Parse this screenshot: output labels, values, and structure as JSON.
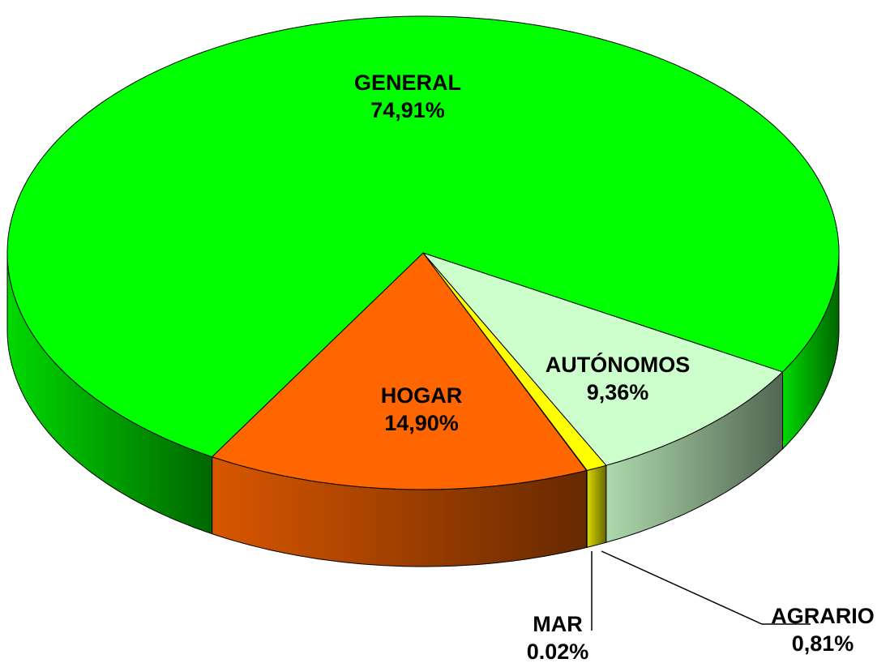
{
  "chart_data": {
    "type": "pie",
    "categories": [
      "HOGAR",
      "MAR",
      "AGRARIO",
      "AUTÓNOMOS",
      "GENERAL"
    ],
    "values": [
      14.9,
      0.02,
      0.81,
      9.36,
      74.91
    ],
    "value_labels": [
      "14,90%",
      "0.02%",
      "0,81%",
      "9,36%",
      "74,91%"
    ],
    "colors": [
      "#ff6600",
      "#c8c800",
      "#ffff00",
      "#ccffcc",
      "#00ff00"
    ]
  }
}
